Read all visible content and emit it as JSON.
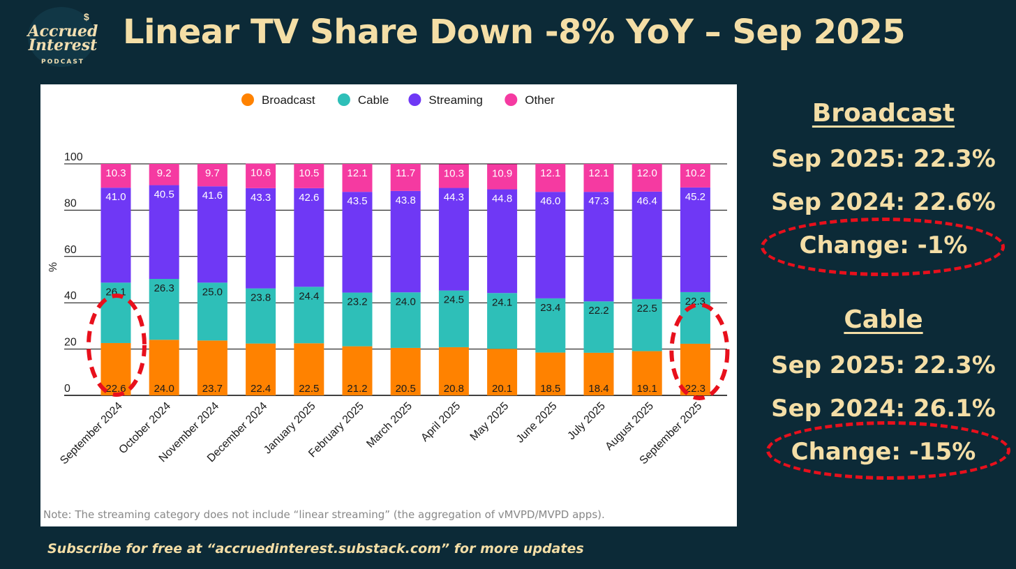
{
  "logo": {
    "line1": "Accrued",
    "line2": "Interest",
    "line3": "PODCAST",
    "dollar": "$"
  },
  "title": "Linear TV Share Down -8% YoY – Sep 2025",
  "note": "Note: The streaming category does not include “linear streaming” (the aggregation of vMVPD/MVPD apps).",
  "footer": "Subscribe for free at “accruedinterest.substack.com” for more updates",
  "colors": {
    "background": "#0c2a37",
    "broadcast": "#ff8200",
    "cable": "#2ebfb8",
    "streaming": "#6f38f5",
    "other": "#f53aa1",
    "accent_text": "#f4dea6",
    "highlight": "#e8101c"
  },
  "broadcast_box": {
    "heading": "Broadcast",
    "line1": "Sep 2025: 22.3%",
    "line2": "Sep 2024: 22.6%",
    "change": "Change: -1%"
  },
  "cable_box": {
    "heading": "Cable",
    "line1": "Sep 2025: 22.3%",
    "line2": "Sep 2024: 26.1%",
    "change": "Change: -15%"
  },
  "chart_data": {
    "type": "bar",
    "stacked": true,
    "ylabel": "%",
    "ylim": [
      0,
      100
    ],
    "yticks": [
      0,
      20,
      40,
      60,
      80,
      100
    ],
    "grid": true,
    "legend_position": "top",
    "categories": [
      "September 2024",
      "October 2024",
      "November 2024",
      "December 2024",
      "January 2025",
      "February 2025",
      "March 2025",
      "April 2025",
      "May 2025",
      "June 2025",
      "July 2025",
      "August 2025",
      "September 2025"
    ],
    "series": [
      {
        "name": "Broadcast",
        "color": "#ff8200",
        "label_color": "#1a1a1a",
        "values": [
          22.6,
          24.0,
          23.7,
          22.4,
          22.5,
          21.2,
          20.5,
          20.8,
          20.1,
          18.5,
          18.4,
          19.1,
          22.3
        ]
      },
      {
        "name": "Cable",
        "color": "#2ebfb8",
        "label_color": "#1a1a1a",
        "values": [
          26.1,
          26.3,
          25.0,
          23.8,
          24.4,
          23.2,
          24.0,
          24.5,
          24.1,
          23.4,
          22.2,
          22.5,
          22.3
        ]
      },
      {
        "name": "Streaming",
        "color": "#6f38f5",
        "label_color": "#ffffff",
        "values": [
          41.0,
          40.5,
          41.6,
          43.3,
          42.6,
          43.5,
          43.8,
          44.3,
          44.8,
          46.0,
          47.3,
          46.4,
          45.2
        ]
      },
      {
        "name": "Other",
        "color": "#f53aa1",
        "label_color": "#ffffff",
        "values": [
          10.3,
          9.2,
          9.7,
          10.6,
          10.5,
          12.1,
          11.7,
          10.3,
          10.9,
          12.1,
          12.1,
          12.0,
          10.2
        ]
      }
    ],
    "highlighted_categories": [
      "September 2024",
      "September 2025"
    ]
  }
}
